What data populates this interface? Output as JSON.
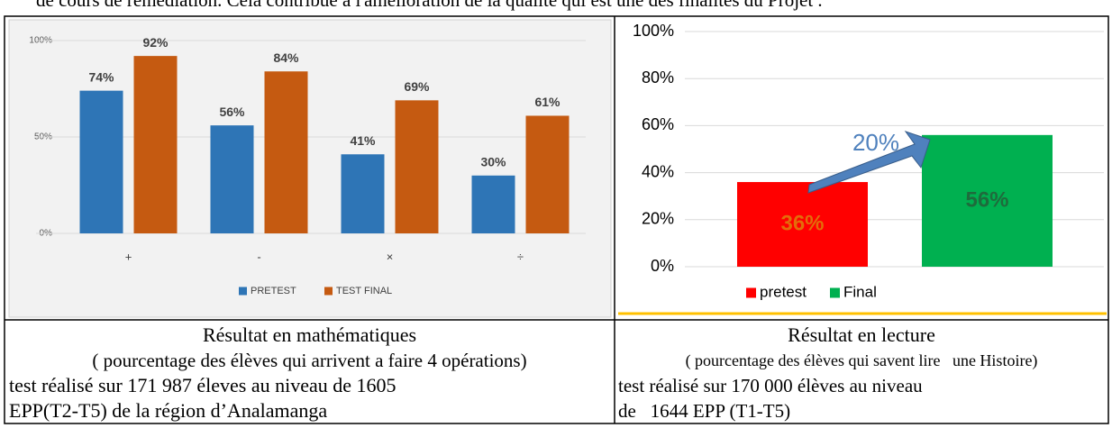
{
  "top_text": "de cours de remédiation. Cela contribue à l'amélioration de la qualité qui est une des finalités du Projet .",
  "chart_data": [
    {
      "type": "bar",
      "categories": [
        "+",
        "-",
        "×",
        "÷"
      ],
      "series": [
        {
          "name": "PRETEST",
          "color": "#2e75b6",
          "values": [
            74,
            56,
            41,
            30
          ],
          "value_labels": [
            "74%",
            "56%",
            "41%",
            "30%"
          ]
        },
        {
          "name": "TEST FINAL",
          "color": "#c55a11",
          "values": [
            92,
            84,
            69,
            61
          ],
          "value_labels": [
            "92%",
            "84%",
            "69%",
            "61%"
          ]
        }
      ],
      "ylim": [
        0,
        100
      ],
      "yticks": [
        {
          "value": 0,
          "label": "0%"
        },
        {
          "value": 50,
          "label": "50%"
        },
        {
          "value": 100,
          "label": "100%"
        }
      ],
      "grid": true,
      "legend": "bottom"
    },
    {
      "type": "bar",
      "categories": [
        null
      ],
      "annotation": "20%",
      "series": [
        {
          "name": "pretest",
          "color": "#ff0000",
          "values": [
            36
          ],
          "value_labels": [
            "36%"
          ]
        },
        {
          "name": "Final",
          "color": "#00b050",
          "values": [
            56
          ],
          "value_labels": [
            "56%"
          ]
        }
      ],
      "ylim": [
        0,
        100
      ],
      "yticks": [
        {
          "value": 0,
          "label": "0%"
        },
        {
          "value": 20,
          "label": "20%"
        },
        {
          "value": 40,
          "label": "40%"
        },
        {
          "value": 60,
          "label": "60%"
        },
        {
          "value": 80,
          "label": "80%"
        },
        {
          "value": 100,
          "label": "100%"
        }
      ],
      "grid": true,
      "legend": "bottom"
    }
  ],
  "captions": [
    {
      "title": "Résultat en mathématiques",
      "subtitle": "( pourcentage des élèves qui arrivent a faire 4 opérations)",
      "lines": [
        "test réalisé sur 171 987 éleves au niveau de 1605",
        "EPP(T2-T5) de la région d’Analamanga"
      ]
    },
    {
      "title": "Résultat en lecture",
      "subtitle": "( pourcentage des élèves qui savent lire   une Histoire)",
      "lines": [
        "test réalisé sur 170 000 élèves au niveau",
        "de   1644 EPP (T1-T5)"
      ]
    }
  ]
}
